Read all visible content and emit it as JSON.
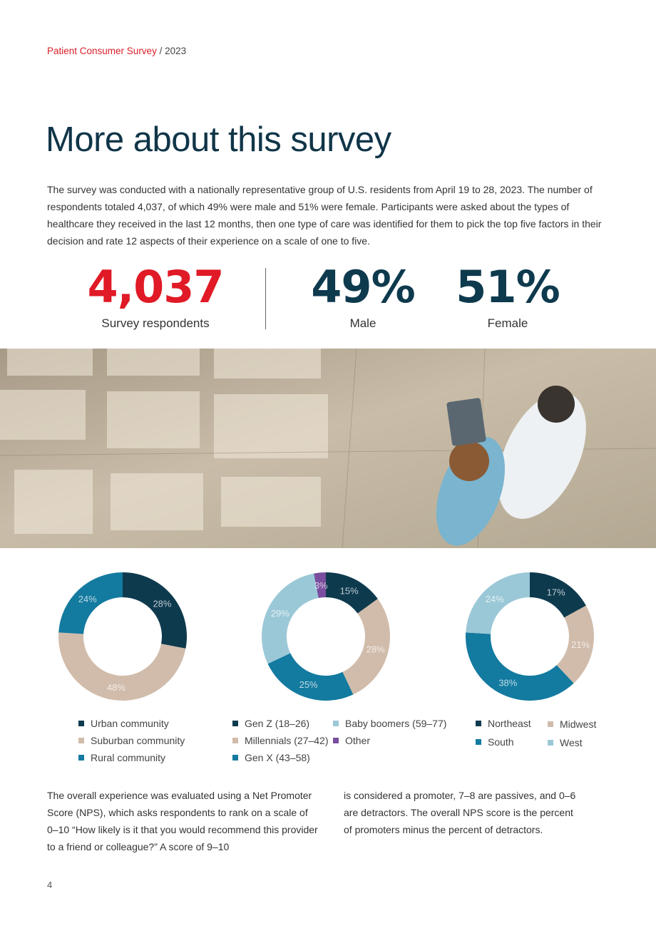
{
  "header": {
    "section": "Patient Consumer Survey",
    "separator": " / ",
    "year": "2023"
  },
  "title": "More about this survey",
  "intro": "The survey was conducted with a nationally representative group of U.S. residents from April 19 to 28, 2023. The number of respondents totaled 4,037, of which 49% were male and 51% were female. Participants were asked about the types of healthcare they received in the last 12 months, then one type of care was identified for them to pick the top five factors in their decision and rate 12 aspects of their experience on a scale of one to five.",
  "stats": {
    "respondents": {
      "value": "4,037",
      "label": "Survey respondents"
    },
    "male": {
      "value": "49%",
      "label": "Male"
    },
    "female": {
      "value": "51%",
      "label": "Female"
    }
  },
  "photo": {
    "description": "Overhead view of a doctor and patient walking across a sunlit floor"
  },
  "chart_data": [
    {
      "type": "pie",
      "variant": "donut",
      "categories": [
        "Urban community",
        "Suburban community",
        "Rural community"
      ],
      "values": [
        28,
        48,
        24
      ],
      "labels": [
        "28%",
        "48%",
        "24%"
      ],
      "colors": [
        "#0e3a4e",
        "#d1bcab",
        "#137aa0"
      ],
      "legend_position": "bottom"
    },
    {
      "type": "pie",
      "variant": "donut",
      "categories": [
        "Gen Z (18–26)",
        "Millennials (27–42)",
        "Gen X (43–58)",
        "Baby boomers (59–77)",
        "Other"
      ],
      "values": [
        15,
        28,
        25,
        29,
        3
      ],
      "labels": [
        "15%",
        "28%",
        "25%",
        "29%",
        "3%"
      ],
      "colors": [
        "#0e3a4e",
        "#d1bcab",
        "#137aa0",
        "#9bc8d7",
        "#7a4d9e"
      ],
      "legend_position": "bottom"
    },
    {
      "type": "pie",
      "variant": "donut",
      "categories": [
        "Northeast",
        "Midwest",
        "South",
        "West"
      ],
      "values": [
        17,
        21,
        38,
        24
      ],
      "labels": [
        "17%",
        "21%",
        "38%",
        "24%"
      ],
      "colors": [
        "#0e3a4e",
        "#d1bcab",
        "#137aa0",
        "#9bc8d7"
      ],
      "legend_position": "bottom"
    }
  ],
  "body": {
    "col1": "The overall experience was evaluated using a Net Promoter Score (NPS), which asks respondents to rank on a scale of 0–10 “How likely is it that you would recommend this provider to a friend or colleague?” A score of 9–10",
    "col2": "is considered a promoter, 7–8 are passives, and 0–6 are detractors. The overall NPS score is the percent of promoters minus the percent of detractors."
  },
  "page_number": "4"
}
